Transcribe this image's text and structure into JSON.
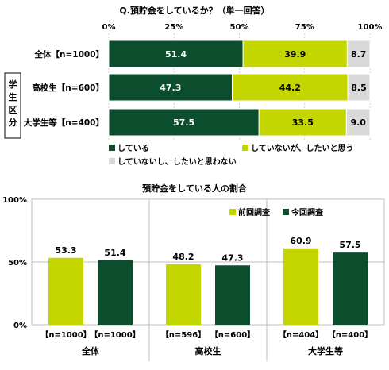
{
  "chart_data": [
    {
      "type": "bar",
      "orientation": "horizontal",
      "stacked": true,
      "title": "Q.預貯金をしているか？（単一回答）",
      "x_ticks": [
        "0%",
        "25%",
        "50%",
        "75%",
        "100%"
      ],
      "xlim": [
        0,
        100
      ],
      "group_label": "学生区分",
      "categories": [
        "全体【n=1000】",
        "高校生【n=600】",
        "大学生等【n=400】"
      ],
      "series": [
        {
          "name": "している",
          "values": [
            51.4,
            47.3,
            57.5
          ],
          "color": "#0b4d2c",
          "label_color": "#ffffff"
        },
        {
          "name": "していないが、したいと思う",
          "values": [
            39.9,
            44.2,
            33.5
          ],
          "color": "#c3d600",
          "label_color": "#000000"
        },
        {
          "name": "していないし、したいと思わない",
          "values": [
            8.7,
            8.5,
            9.0
          ],
          "color": "#d9d9d9",
          "label_color": "#000000"
        }
      ],
      "value_labels": [
        [
          "51.4",
          "39.9",
          "8.7"
        ],
        [
          "47.3",
          "44.2",
          "8.5"
        ],
        [
          "57.5",
          "33.5",
          "9.0"
        ]
      ],
      "legend_position": "bottom"
    },
    {
      "type": "bar",
      "title": "預貯金をしている人の割合",
      "ylim": [
        0,
        100
      ],
      "y_ticks": [
        "0%",
        "50%",
        "100%"
      ],
      "groups": [
        "全体",
        "高校生",
        "大学生等"
      ],
      "series": [
        {
          "name": "前回調査",
          "values": [
            53.3,
            48.2,
            60.9
          ],
          "labels": [
            "53.3",
            "48.2",
            "60.9"
          ],
          "n": [
            "【n=1000】",
            "【n=596】",
            "【n=404】"
          ],
          "color": "#c3d600"
        },
        {
          "name": "今回調査",
          "values": [
            51.4,
            47.3,
            57.5
          ],
          "labels": [
            "51.4",
            "47.3",
            "57.5"
          ],
          "n": [
            "【n=1000】",
            "【n=600】",
            "【n=400】"
          ],
          "color": "#0b4d2c"
        }
      ],
      "legend_position": "top-right",
      "grid": true
    }
  ]
}
